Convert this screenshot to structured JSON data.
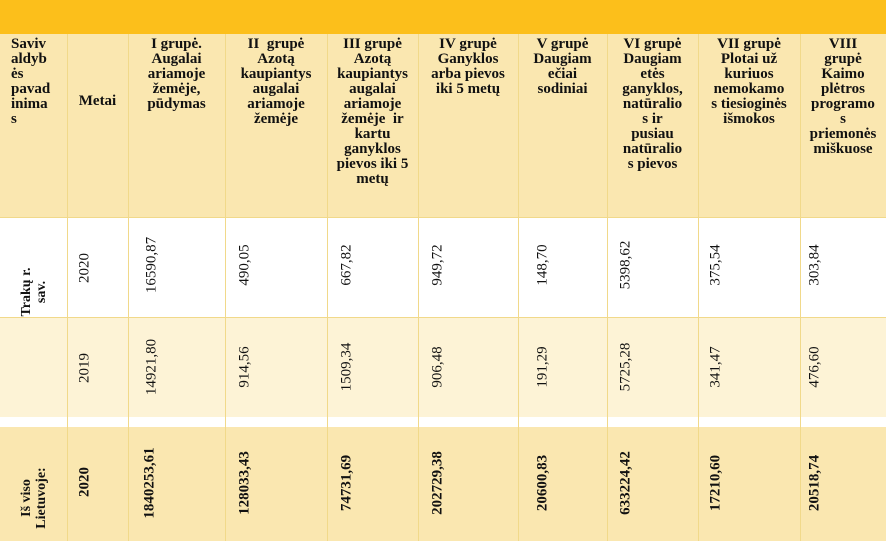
{
  "headers": {
    "savivaldybe": "Saviv\naldyb\nės\npavad\ninima\ns",
    "metai": "Metai",
    "g1": "I grupė.\nAugalai\nariamoje\nžemėje,\npūdymas",
    "g2": "II  grupė\nAzotą\nkaupiantys\naugalai\nariamoje\nžemėje",
    "g3": "III grupė\nAzotą\nkaupiantys\naugalai\nariamoje\nžemėje  ir\nkartu\nganyklos\npievos iki 5\nmetų",
    "g4": "IV grupė\nGanyklos\narba pievos\niki 5 metų",
    "g5": "V grupė\nDaugiam\nečiai\nsodiniai",
    "g6": "VI grupė\nDaugiam\netės\nganyklos,\nnatūralio\ns ir\npusiau\nnatūralio\ns pievos",
    "g7": "VII grupė\nPlotai už\nkuriuos\nnemokamo\ns tiesioginės\nišmokos",
    "g8": "VIII\ngrupė\nKaimo\nplėtros\nprogramo\ns\npriemonės\nmiškuose"
  },
  "rows": [
    {
      "label": "Trakų r.\nsav.",
      "year": "2020",
      "values": [
        "16590,87",
        "490,05",
        "667,82",
        "949,72",
        "148,70",
        "5398,62",
        "375,54",
        "303,84"
      ]
    },
    {
      "label": "",
      "year": "2019",
      "values": [
        "14921,80",
        "914,56",
        "1509,34",
        "906,48",
        "191,29",
        "5725,28",
        "341,47",
        "476,60"
      ]
    },
    {
      "label": "Iš viso\nLietuvoje:",
      "year": "2020",
      "values": [
        "1840253,61",
        "128033,43",
        "74731,69",
        "202729,38",
        "20600,83",
        "633224,42",
        "17210,60",
        "20518,74"
      ]
    }
  ]
}
